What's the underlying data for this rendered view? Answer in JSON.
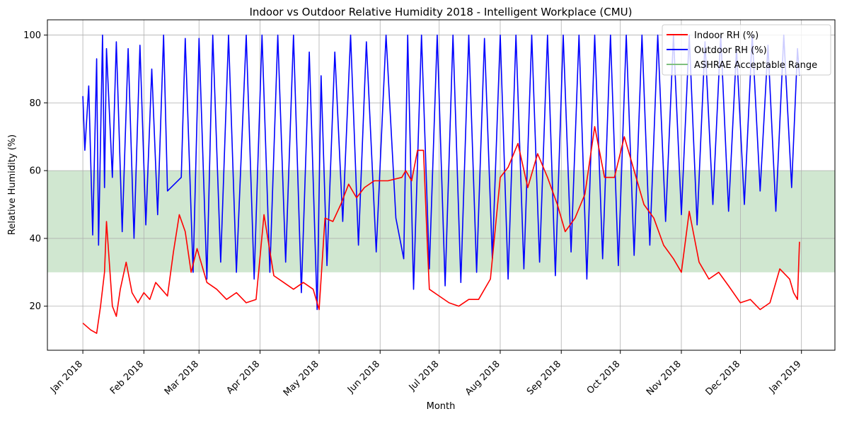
{
  "chart_data": {
    "type": "line",
    "title": "Indoor vs Outdoor Relative Humidity 2018 - Intelligent Workplace (CMU)",
    "xlabel": "Month",
    "ylabel": "Relative Humidity (%)",
    "xlim": [
      "2017-12-14",
      "2019-01-18"
    ],
    "ylim": [
      7,
      104.5
    ],
    "x_ticks": [
      "2018-01-01",
      "2018-02-01",
      "2018-03-01",
      "2018-04-01",
      "2018-05-01",
      "2018-06-01",
      "2018-07-01",
      "2018-08-01",
      "2018-09-01",
      "2018-10-01",
      "2018-11-01",
      "2018-12-01",
      "2019-01-01"
    ],
    "x_tick_labels": [
      "Jan 2018",
      "Feb 2018",
      "Mar 2018",
      "Apr 2018",
      "May 2018",
      "Jun 2018",
      "Jul 2018",
      "Aug 2018",
      "Sep 2018",
      "Oct 2018",
      "Nov 2018",
      "Dec 2018",
      "Jan 2019"
    ],
    "y_ticks": [
      20,
      40,
      60,
      80,
      100
    ],
    "y_tick_labels": [
      "20",
      "40",
      "60",
      "80",
      "100"
    ],
    "grid": true,
    "legend_position": "top-right",
    "band": {
      "name": "ASHRAE Acceptable Range",
      "y_range": [
        30,
        60
      ],
      "color": "#a9d3a9"
    },
    "series": [
      {
        "name": "Indoor RH (%)",
        "color": "#ff0000",
        "x": [
          "2018-01-01",
          "2018-01-05",
          "2018-01-08",
          "2018-01-10",
          "2018-01-12",
          "2018-01-13",
          "2018-01-16",
          "2018-01-18",
          "2018-01-20",
          "2018-01-23",
          "2018-01-26",
          "2018-01-29",
          "2018-02-01",
          "2018-02-04",
          "2018-02-07",
          "2018-02-10",
          "2018-02-13",
          "2018-02-16",
          "2018-02-19",
          "2018-02-22",
          "2018-02-25",
          "2018-02-28",
          "2018-03-05",
          "2018-03-10",
          "2018-03-15",
          "2018-03-20",
          "2018-03-25",
          "2018-03-30",
          "2018-04-03",
          "2018-04-08",
          "2018-04-13",
          "2018-04-18",
          "2018-04-23",
          "2018-04-28",
          "2018-05-01",
          "2018-05-04",
          "2018-05-08",
          "2018-05-12",
          "2018-05-16",
          "2018-05-20",
          "2018-05-24",
          "2018-05-29",
          "2018-06-05",
          "2018-06-12",
          "2018-06-14",
          "2018-06-17",
          "2018-06-20",
          "2018-06-23",
          "2018-06-25",
          "2018-06-26",
          "2018-07-01",
          "2018-07-06",
          "2018-07-11",
          "2018-07-16",
          "2018-07-21",
          "2018-07-27",
          "2018-08-01",
          "2018-08-05",
          "2018-08-10",
          "2018-08-15",
          "2018-08-20",
          "2018-08-25",
          "2018-08-30",
          "2018-09-03",
          "2018-09-08",
          "2018-09-13",
          "2018-09-18",
          "2018-09-23",
          "2018-09-28",
          "2018-10-03",
          "2018-10-08",
          "2018-10-13",
          "2018-10-18",
          "2018-10-23",
          "2018-10-28",
          "2018-11-01",
          "2018-11-05",
          "2018-11-10",
          "2018-11-15",
          "2018-11-20",
          "2018-11-25",
          "2018-12-01",
          "2018-12-06",
          "2018-12-11",
          "2018-12-16",
          "2018-12-21",
          "2018-12-26",
          "2018-12-28",
          "2018-12-30",
          "2018-12-31"
        ],
        "y": [
          15,
          13,
          12,
          20,
          30,
          45,
          20,
          17,
          25,
          33,
          24,
          21,
          24,
          22,
          27,
          25,
          23,
          36,
          47,
          42,
          30,
          37,
          27,
          25,
          22,
          24,
          21,
          22,
          47,
          29,
          27,
          25,
          27,
          25,
          19,
          46,
          45,
          50,
          56,
          52,
          55,
          57,
          57,
          58,
          60,
          57,
          66,
          66,
          38,
          25,
          23,
          21,
          20,
          22,
          22,
          28,
          58,
          61,
          68,
          55,
          65,
          58,
          50,
          42,
          46,
          53,
          73,
          58,
          58,
          70,
          60,
          50,
          46,
          38,
          34,
          30,
          48,
          33,
          28,
          30,
          26,
          21,
          22,
          19,
          21,
          31,
          28,
          24,
          22,
          39
        ]
      },
      {
        "name": "Outdoor RH (%)",
        "color": "#0000ff",
        "x": [
          "2018-01-01",
          "2018-01-02",
          "2018-01-04",
          "2018-01-06",
          "2018-01-08",
          "2018-01-09",
          "2018-01-11",
          "2018-01-12",
          "2018-01-13",
          "2018-01-16",
          "2018-01-18",
          "2018-01-21",
          "2018-01-24",
          "2018-01-27",
          "2018-01-30",
          "2018-02-02",
          "2018-02-05",
          "2018-02-08",
          "2018-02-11",
          "2018-02-13",
          "2018-02-20",
          "2018-02-22",
          "2018-02-26",
          "2018-03-01",
          "2018-03-05",
          "2018-03-08",
          "2018-03-12",
          "2018-03-16",
          "2018-03-20",
          "2018-03-25",
          "2018-03-29",
          "2018-04-02",
          "2018-04-06",
          "2018-04-10",
          "2018-04-14",
          "2018-04-18",
          "2018-04-22",
          "2018-04-26",
          "2018-04-30",
          "2018-05-02",
          "2018-05-05",
          "2018-05-09",
          "2018-05-13",
          "2018-05-17",
          "2018-05-21",
          "2018-05-25",
          "2018-05-30",
          "2018-06-04",
          "2018-06-09",
          "2018-06-13",
          "2018-06-15",
          "2018-06-18",
          "2018-06-22",
          "2018-06-26",
          "2018-06-30",
          "2018-07-04",
          "2018-07-08",
          "2018-07-12",
          "2018-07-16",
          "2018-07-20",
          "2018-07-24",
          "2018-07-28",
          "2018-08-01",
          "2018-08-05",
          "2018-08-09",
          "2018-08-13",
          "2018-08-17",
          "2018-08-21",
          "2018-08-25",
          "2018-08-29",
          "2018-09-02",
          "2018-09-06",
          "2018-09-10",
          "2018-09-14",
          "2018-09-18",
          "2018-09-22",
          "2018-09-26",
          "2018-09-30",
          "2018-10-04",
          "2018-10-08",
          "2018-10-12",
          "2018-10-16",
          "2018-10-20",
          "2018-10-24",
          "2018-10-28",
          "2018-11-01",
          "2018-11-05",
          "2018-11-09",
          "2018-11-13",
          "2018-11-17",
          "2018-11-21",
          "2018-11-25",
          "2018-11-29",
          "2018-12-03",
          "2018-12-07",
          "2018-12-11",
          "2018-12-15",
          "2018-12-19",
          "2018-12-23",
          "2018-12-27",
          "2018-12-30",
          "2018-12-31"
        ],
        "y": [
          82,
          66,
          85,
          41,
          93,
          38,
          100,
          55,
          96,
          58,
          98,
          42,
          96,
          40,
          97,
          44,
          90,
          47,
          100,
          54,
          58,
          99,
          30,
          99,
          28,
          100,
          33,
          100,
          30,
          100,
          28,
          100,
          30,
          100,
          33,
          100,
          24,
          95,
          19,
          88,
          32,
          95,
          45,
          100,
          38,
          98,
          36,
          100,
          46,
          34,
          100,
          25,
          100,
          31,
          100,
          26,
          100,
          27,
          100,
          30,
          99,
          34,
          100,
          28,
          100,
          31,
          100,
          33,
          100,
          29,
          100,
          36,
          100,
          28,
          100,
          34,
          100,
          32,
          100,
          35,
          100,
          38,
          100,
          45,
          100,
          47,
          100,
          44,
          98,
          50,
          100,
          48,
          96,
          50,
          100,
          54,
          97,
          48,
          100,
          55,
          96,
          88
        ]
      }
    ]
  }
}
